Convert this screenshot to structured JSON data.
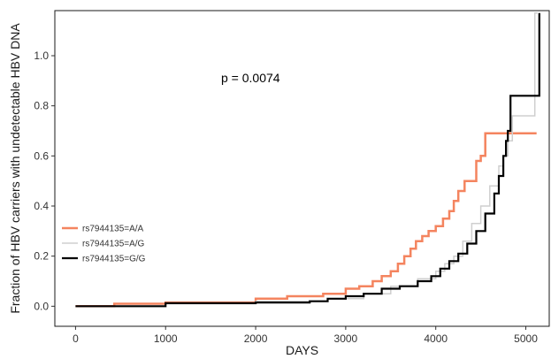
{
  "chart_data": {
    "type": "line",
    "title": "",
    "xlabel": "DAYS",
    "ylabel": "Fraction of HBV carriers with undetectable HBV DNA",
    "xlim": [
      -230,
      5260
    ],
    "ylim": [
      -0.08,
      1.18
    ],
    "x_ticks": [
      0,
      1000,
      2000,
      3000,
      4000,
      5000
    ],
    "y_ticks": [
      0.0,
      0.2,
      0.4,
      0.6,
      0.8,
      1.0
    ],
    "x_tick_labels": [
      "0",
      "1000",
      "2000",
      "3000",
      "4000",
      "5000"
    ],
    "y_tick_labels": [
      "0.0",
      "0.2",
      "0.4",
      "0.6",
      "0.8",
      "1.0"
    ],
    "grid": false,
    "annotation": "p = 0.0074",
    "legend_position": "left-middle",
    "step": true,
    "series": [
      {
        "name": "rs7944135=A/A",
        "color": "#f4845f",
        "x": [
          0,
          430,
          1000,
          2000,
          2350,
          2750,
          3000,
          3150,
          3300,
          3400,
          3500,
          3580,
          3650,
          3720,
          3780,
          3850,
          3920,
          4000,
          4080,
          4150,
          4200,
          4250,
          4320,
          4380,
          4450,
          4500,
          4550,
          4600,
          5120
        ],
        "y": [
          0,
          0.01,
          0.015,
          0.03,
          0.04,
          0.05,
          0.07,
          0.08,
          0.1,
          0.12,
          0.14,
          0.17,
          0.2,
          0.23,
          0.26,
          0.28,
          0.3,
          0.32,
          0.35,
          0.38,
          0.42,
          0.46,
          0.5,
          0.5,
          0.58,
          0.6,
          0.69,
          0.69,
          0.69
        ]
      },
      {
        "name": "rs7944135=A/G",
        "color": "#cfcfcf",
        "x": [
          0,
          1000,
          2000,
          2800,
          3200,
          3500,
          3800,
          4000,
          4100,
          4200,
          4300,
          4400,
          4500,
          4600,
          4700,
          4750,
          4800,
          4850,
          5000,
          5100,
          5130
        ],
        "y": [
          0,
          0.01,
          0.02,
          0.03,
          0.05,
          0.08,
          0.11,
          0.14,
          0.17,
          0.2,
          0.26,
          0.33,
          0.4,
          0.48,
          0.56,
          0.6,
          0.66,
          0.76,
          0.76,
          1.17,
          1.17
        ]
      },
      {
        "name": "rs7944135=G/G",
        "color": "#000000",
        "x": [
          0,
          1000,
          2000,
          2600,
          2800,
          3000,
          3200,
          3400,
          3600,
          3800,
          3950,
          4050,
          4150,
          4250,
          4350,
          4450,
          4550,
          4650,
          4700,
          4750,
          4780,
          4800,
          4830,
          5100,
          5150
        ],
        "y": [
          0,
          0.012,
          0.015,
          0.02,
          0.03,
          0.04,
          0.05,
          0.07,
          0.08,
          0.1,
          0.12,
          0.15,
          0.18,
          0.21,
          0.25,
          0.3,
          0.37,
          0.45,
          0.52,
          0.6,
          0.66,
          0.7,
          0.84,
          0.84,
          1.17
        ]
      }
    ]
  }
}
